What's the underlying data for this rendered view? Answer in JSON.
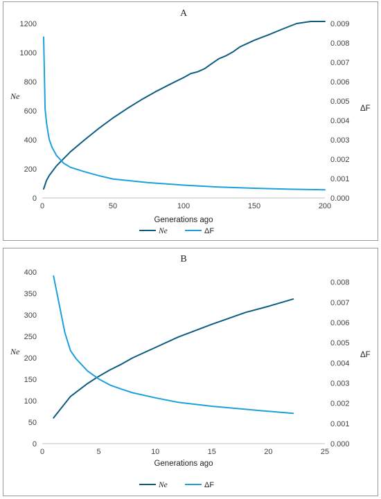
{
  "chart_data": [
    {
      "type": "line",
      "title": "A",
      "xlabel": "Generations ago",
      "ylabel": "Ne",
      "y2label": "ΔF",
      "xlim": [
        0,
        200
      ],
      "ylim": [
        0,
        1200
      ],
      "y2lim": [
        0,
        0.009
      ],
      "xticks": [
        0,
        50,
        100,
        150,
        200
      ],
      "yticks": [
        0,
        200,
        400,
        600,
        800,
        1000,
        1200
      ],
      "y2ticks": [
        "0.000",
        "0.001",
        "0.002",
        "0.003",
        "0.004",
        "0.005",
        "0.006",
        "0.007",
        "0.008",
        "0.009"
      ],
      "grid": false,
      "legend": "bottom",
      "series": [
        {
          "name": "Ne",
          "axis": "left",
          "color": "#0d5c80",
          "x": [
            1,
            3,
            5,
            10,
            20,
            30,
            40,
            50,
            60,
            70,
            80,
            90,
            100,
            105,
            110,
            115,
            120,
            125,
            130,
            135,
            140,
            150,
            160,
            170,
            180,
            190,
            200
          ],
          "y": [
            62,
            120,
            155,
            220,
            318,
            400,
            478,
            550,
            615,
            675,
            730,
            780,
            828,
            855,
            868,
            890,
            925,
            958,
            978,
            1005,
            1040,
            1085,
            1122,
            1162,
            1200,
            1236,
            1265
          ]
        },
        {
          "name": "ΔF",
          "axis": "right",
          "color": "#1aa0dc",
          "x": [
            1,
            2,
            3,
            4,
            5,
            7,
            10,
            15,
            20,
            30,
            40,
            50,
            75,
            100,
            125,
            150,
            175,
            200
          ],
          "y": [
            0.0083,
            0.0046,
            0.0039,
            0.0034,
            0.003,
            0.0026,
            0.0022,
            0.0018,
            0.00158,
            0.00135,
            0.00115,
            0.00098,
            0.00079,
            0.00066,
            0.00056,
            0.0005,
            0.00045,
            0.00042
          ]
        }
      ]
    },
    {
      "type": "line",
      "title": "B",
      "xlabel": "Generations ago",
      "ylabel": "Ne",
      "y2label": "ΔF",
      "xlim": [
        0,
        25
      ],
      "ylim": [
        0,
        400
      ],
      "y2lim": [
        0,
        0.0085
      ],
      "xticks": [
        0,
        5,
        10,
        15,
        20,
        25
      ],
      "yticks": [
        0,
        50,
        100,
        150,
        200,
        250,
        300,
        350,
        400
      ],
      "y2ticks": [
        "0.000",
        "0.001",
        "0.002",
        "0.003",
        "0.004",
        "0.005",
        "0.006",
        "0.007",
        "0.008"
      ],
      "grid": false,
      "legend": "bottom",
      "series": [
        {
          "name": "Ne",
          "axis": "left",
          "color": "#0d5c80",
          "x": [
            1,
            2.5,
            4,
            5,
            6,
            7,
            8,
            10,
            12,
            15,
            18,
            20,
            22.2
          ],
          "y": [
            60,
            110,
            140,
            157,
            172,
            185,
            200,
            224,
            248,
            278,
            306,
            320,
            337
          ]
        },
        {
          "name": "ΔF",
          "axis": "right",
          "color": "#1aa0dc",
          "x": [
            1,
            1.5,
            2,
            2.5,
            3,
            3.5,
            4,
            5,
            6,
            7,
            8,
            10,
            12,
            15,
            18,
            20,
            22.2
          ],
          "y": [
            0.0083,
            0.0069,
            0.0055,
            0.0046,
            0.0042,
            0.0039,
            0.0036,
            0.0032,
            0.0029,
            0.0027,
            0.00252,
            0.00227,
            0.00205,
            0.00185,
            0.0017,
            0.0016,
            0.0015
          ]
        }
      ]
    }
  ]
}
